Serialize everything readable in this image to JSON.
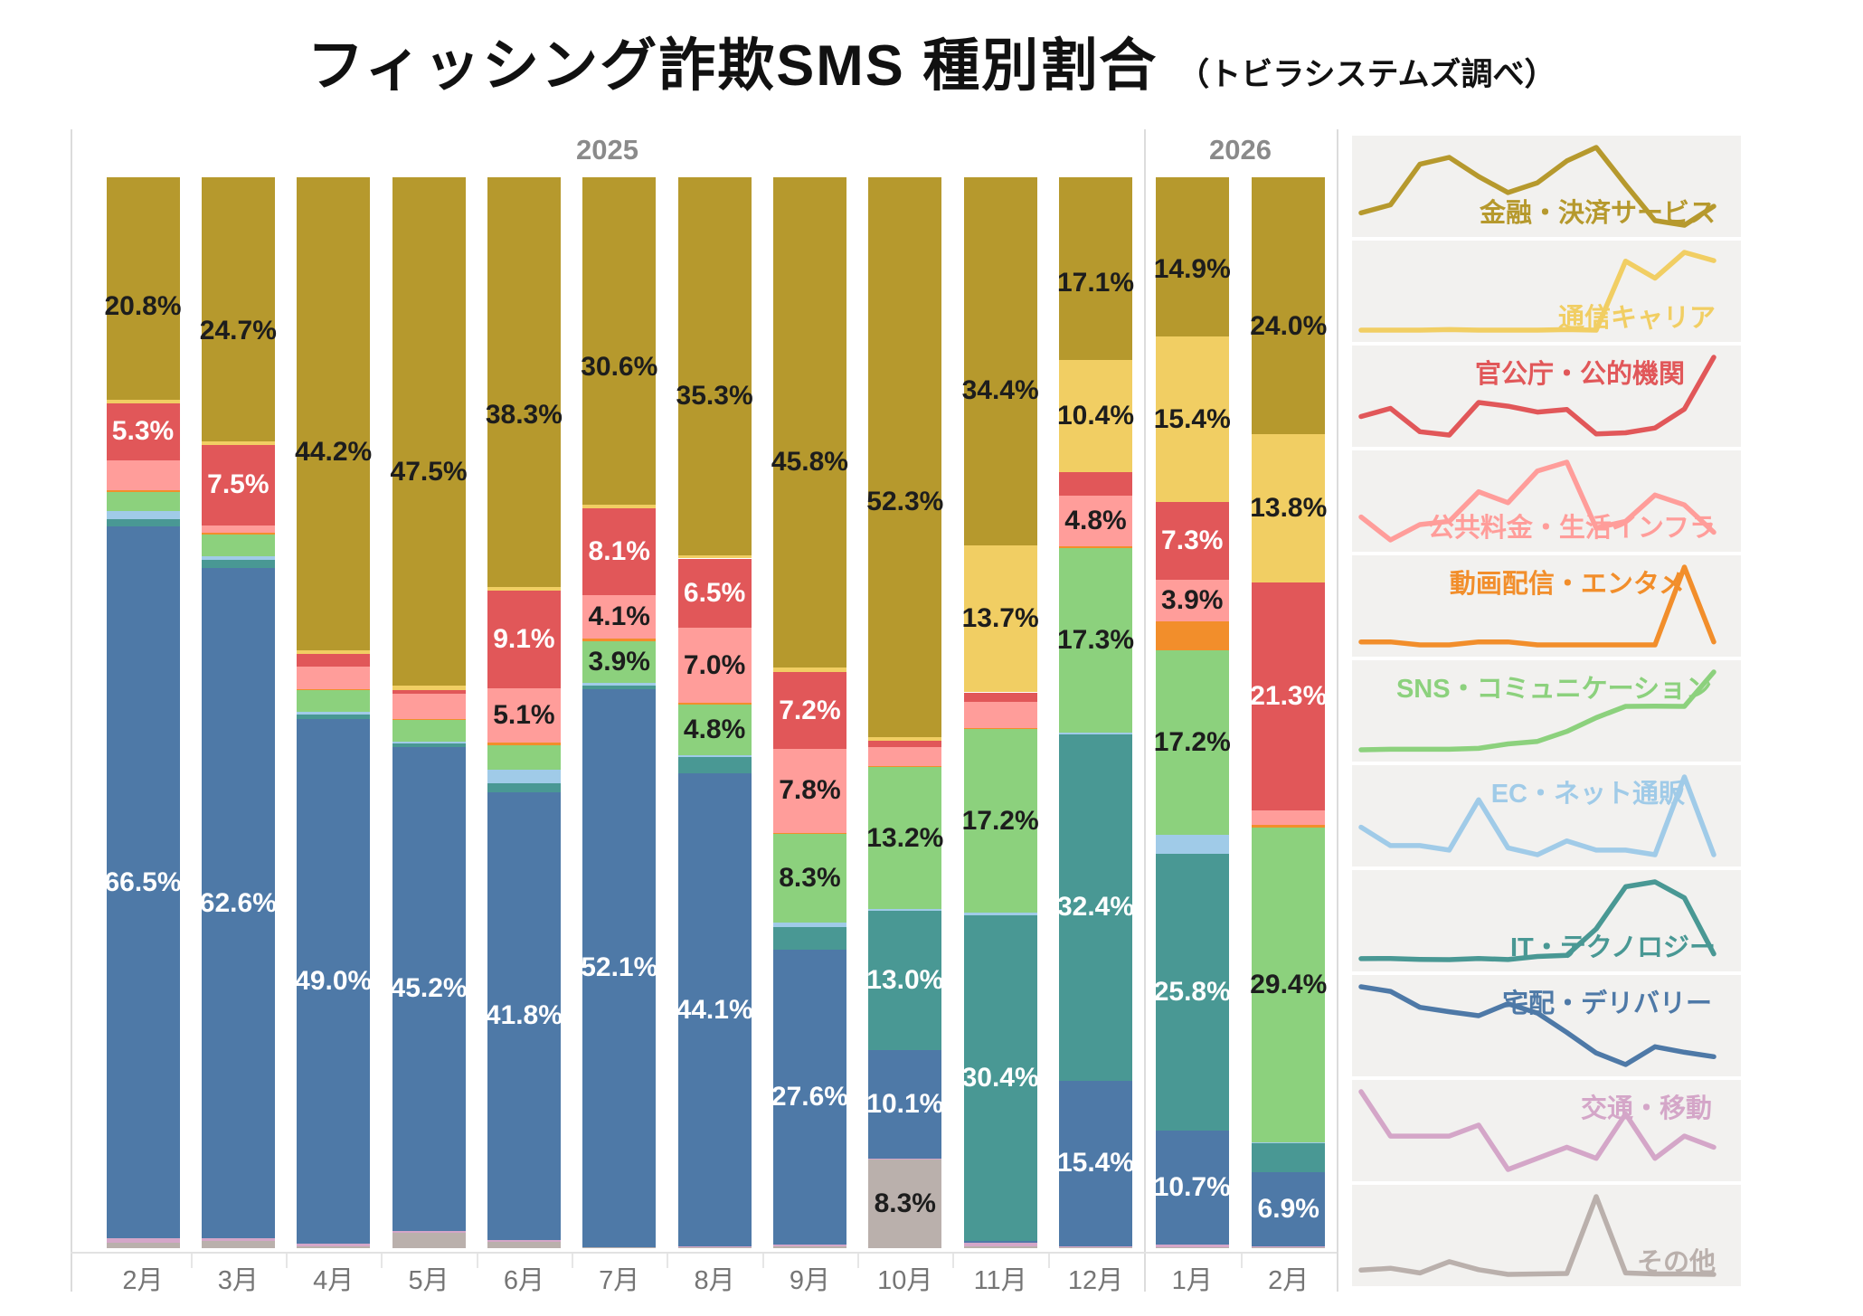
{
  "title": "フィッシング詐欺SMS 種別割合",
  "subtitle": "（トビラシステムズ調べ）",
  "chart_data": {
    "type": "bar",
    "variant": "100%-stacked-columns-with-sparkline-legend",
    "unit": "%",
    "ylim": [
      0,
      100
    ],
    "grid": false,
    "legend_position": "right-sparkline-panel",
    "label_threshold": 3.8,
    "categories": [
      "2月",
      "3月",
      "4月",
      "5月",
      "6月",
      "7月",
      "8月",
      "9月",
      "10月",
      "11月",
      "12月",
      "1月",
      "2月"
    ],
    "year_groups": [
      {
        "label": "2025",
        "months": [
          "2月",
          "3月",
          "4月",
          "5月",
          "6月",
          "7月",
          "8月",
          "9月",
          "10月",
          "11月",
          "12月"
        ]
      },
      {
        "label": "2026",
        "months": [
          "1月",
          "2月"
        ]
      }
    ],
    "series": [
      {
        "name": "金融・決済サービス",
        "color": "#B6992D",
        "label_text_color": "#1d1d1d",
        "sparkline_label_pos": "bottom-right",
        "values": [
          20.8,
          24.7,
          44.2,
          47.5,
          38.3,
          30.6,
          35.3,
          45.8,
          52.3,
          34.4,
          17.1,
          14.9,
          24.0
        ]
      },
      {
        "name": "通信キャリア",
        "color": "#F1CE63",
        "label_text_color": "#1d1d1d",
        "sparkline_label_pos": "bottom-right",
        "values": [
          0.3,
          0.3,
          0.3,
          0.4,
          0.3,
          0.3,
          0.3,
          0.4,
          0.3,
          13.7,
          10.4,
          15.4,
          13.8
        ]
      },
      {
        "name": "官公庁・公的機関",
        "color": "#E15759",
        "label_text_color": "#ffffff",
        "sparkline_label_pos": "top-right-inset",
        "values": [
          5.3,
          7.5,
          1.2,
          0.3,
          9.1,
          8.1,
          6.5,
          7.2,
          0.6,
          0.9,
          2.2,
          7.3,
          21.3
        ]
      },
      {
        "name": "公共料金・生活インフラ",
        "color": "#FF9D9A",
        "label_text_color": "#1d1d1d",
        "sparkline_label_pos": "bottom-right",
        "values": [
          2.8,
          0.7,
          2.1,
          2.4,
          5.1,
          4.1,
          7.0,
          7.8,
          1.8,
          2.4,
          4.8,
          3.9,
          1.4
        ]
      },
      {
        "name": "動画配信・エンタメ",
        "color": "#F28E2B",
        "label_text_color": "#ffffff",
        "sparkline_label_pos": "top-right-inset",
        "values": [
          0.2,
          0.2,
          0.1,
          0.1,
          0.2,
          0.2,
          0.1,
          0.1,
          0.1,
          0.1,
          0.1,
          2.7,
          0.2
        ]
      },
      {
        "name": "SNS・コミュニケーション",
        "color": "#8CD17D",
        "label_text_color": "#1d1d1d",
        "sparkline_label_pos": "top-right",
        "values": [
          1.8,
          2.0,
          2.0,
          2.0,
          2.3,
          3.9,
          4.8,
          8.3,
          13.2,
          17.2,
          17.3,
          17.2,
          29.4
        ]
      },
      {
        "name": "EC・ネット通販",
        "color": "#A0CBE8",
        "label_text_color": "#1d1d1d",
        "sparkline_label_pos": "top-right-inset",
        "values": [
          0.7,
          0.3,
          0.3,
          0.2,
          1.3,
          0.25,
          0.1,
          0.4,
          0.2,
          0.2,
          0.1,
          1.8,
          0.1
        ]
      },
      {
        "name": "IT・テクノロジー",
        "color": "#499894",
        "label_text_color": "#ffffff",
        "sparkline_label_pos": "bottom-right",
        "values": [
          0.7,
          0.8,
          0.4,
          0.3,
          0.8,
          0.35,
          1.6,
          2.1,
          13.0,
          30.4,
          32.4,
          25.8,
          2.7
        ]
      },
      {
        "name": "宅配・デリバリー",
        "color": "#4E79A7",
        "label_text_color": "#ffffff",
        "sparkline_label_pos": "top-right",
        "values": [
          66.5,
          62.6,
          49.0,
          45.2,
          41.8,
          52.1,
          44.1,
          27.6,
          10.1,
          0.2,
          15.4,
          10.7,
          6.9
        ]
      },
      {
        "name": "交通・移動",
        "color": "#D4A6C8",
        "label_text_color": "#1d1d1d",
        "sparkline_label_pos": "top-right",
        "values": [
          0.4,
          0.2,
          0.2,
          0.2,
          0.25,
          0.05,
          0.1,
          0.15,
          0.1,
          0.3,
          0.1,
          0.2,
          0.15
        ]
      },
      {
        "name": "その他",
        "color": "#BAB0AC",
        "label_text_color": "#1d1d1d",
        "sparkline_label_pos": "bottom-right",
        "values": [
          0.5,
          0.7,
          0.2,
          1.4,
          0.55,
          0.05,
          0.1,
          0.15,
          8.3,
          0.2,
          0.1,
          0.1,
          0.05
        ]
      }
    ]
  }
}
